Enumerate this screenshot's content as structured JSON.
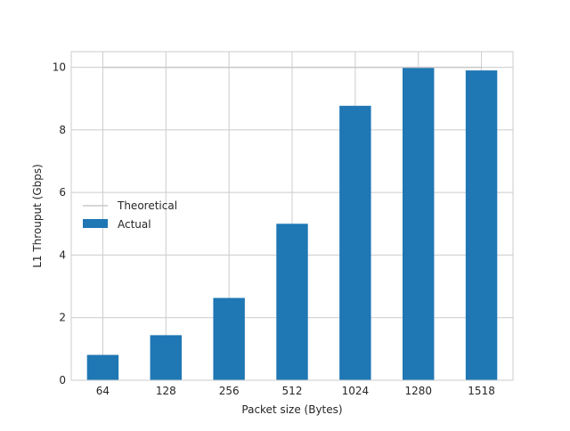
{
  "chart_data": {
    "type": "bar",
    "xlabel": "Packet size (Bytes)",
    "ylabel": "L1 Throuput (Gbps)",
    "categories": [
      "64",
      "128",
      "256",
      "512",
      "1024",
      "1280",
      "1518"
    ],
    "series": [
      {
        "name": "Actual",
        "type": "bar",
        "color": "#1f77b4",
        "values": [
          0.81,
          1.44,
          2.63,
          5.0,
          8.77,
          10.0,
          9.9
        ]
      },
      {
        "name": "Theoretical",
        "type": "line",
        "color": "#c8c8c8",
        "values": [
          10,
          10,
          10,
          10,
          10,
          10,
          10
        ]
      }
    ],
    "ylim": [
      0,
      10.5
    ],
    "yticks": [
      0,
      2,
      4,
      6,
      8,
      10
    ],
    "grid": true,
    "legend_position": "center-left"
  }
}
